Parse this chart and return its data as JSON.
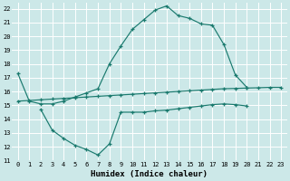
{
  "xlabel": "Humidex (Indice chaleur)",
  "bg_color": "#cce8e8",
  "grid_color": "#ffffff",
  "line_color": "#1a7a6e",
  "xlim": [
    -0.5,
    23.5
  ],
  "ylim": [
    11,
    22.4
  ],
  "xticks": [
    0,
    1,
    2,
    3,
    4,
    5,
    6,
    7,
    8,
    9,
    10,
    11,
    12,
    13,
    14,
    15,
    16,
    17,
    18,
    19,
    20,
    21,
    22,
    23
  ],
  "yticks": [
    11,
    12,
    13,
    14,
    15,
    16,
    17,
    18,
    19,
    20,
    21,
    22
  ],
  "line1_x": [
    0,
    1,
    2,
    3,
    4,
    5,
    6,
    7,
    8,
    9,
    10,
    11,
    12,
    13,
    14,
    15,
    16,
    17,
    18,
    19,
    20
  ],
  "line1_y": [
    17.3,
    15.3,
    15.1,
    15.1,
    15.3,
    15.6,
    15.9,
    16.2,
    18.0,
    19.3,
    20.5,
    21.2,
    21.9,
    22.2,
    21.5,
    21.3,
    20.9,
    20.8,
    19.4,
    17.2,
    16.3
  ],
  "line2_x": [
    0,
    1,
    2,
    3,
    4,
    5,
    6,
    7,
    8,
    9,
    10,
    11,
    12,
    13,
    14,
    15,
    16,
    17,
    18,
    19,
    20,
    21,
    22,
    23
  ],
  "line2_y": [
    15.3,
    15.35,
    15.4,
    15.45,
    15.5,
    15.55,
    15.6,
    15.65,
    15.7,
    15.75,
    15.8,
    15.85,
    15.9,
    15.95,
    16.0,
    16.05,
    16.1,
    16.15,
    16.2,
    16.22,
    16.25,
    16.27,
    16.3,
    16.3
  ],
  "line3_x": [
    2,
    3,
    4,
    5,
    6,
    7,
    8,
    9,
    10,
    11,
    12,
    13,
    14,
    15,
    16,
    17,
    18,
    19,
    20
  ],
  "line3_y": [
    14.7,
    13.2,
    12.6,
    12.1,
    11.8,
    11.4,
    12.2,
    14.5,
    14.5,
    14.5,
    14.6,
    14.65,
    14.75,
    14.85,
    14.95,
    15.05,
    15.1,
    15.05,
    14.95
  ]
}
